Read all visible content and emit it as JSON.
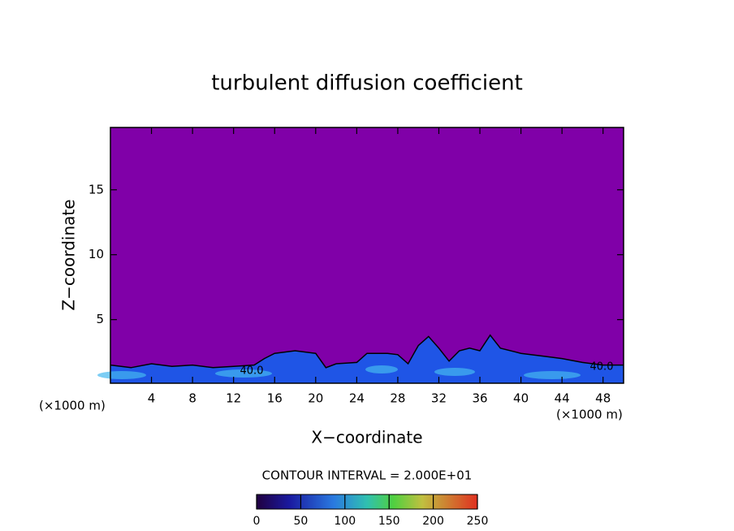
{
  "chart_data": {
    "type": "contour",
    "title": "turbulent diffusion coefficient",
    "xlabel": "X−coordinate",
    "ylabel": "Z−coordinate",
    "x_unit": "(×1000 m)",
    "y_unit": "(×1000 m)",
    "xlim": [
      0,
      50
    ],
    "ylim": [
      0.1,
      19.8
    ],
    "xticks": [
      4,
      8,
      12,
      16,
      20,
      24,
      28,
      32,
      36,
      40,
      44,
      48
    ],
    "yticks": [
      5,
      10,
      15
    ],
    "background_color": "#8000a8",
    "field_color": "#1f55e6",
    "x": [
      0,
      2,
      4,
      6,
      8,
      10,
      12,
      14,
      15,
      16,
      18,
      20,
      21,
      22,
      24,
      25,
      27,
      28,
      29,
      30,
      31,
      32,
      33,
      34,
      35,
      36,
      37,
      38,
      40,
      42,
      44,
      46,
      48,
      50
    ],
    "values": [
      1.5,
      1.3,
      1.6,
      1.4,
      1.5,
      1.3,
      1.4,
      1.5,
      2.0,
      2.4,
      2.6,
      2.4,
      1.3,
      1.6,
      1.7,
      2.4,
      2.4,
      2.3,
      1.6,
      3.0,
      3.7,
      2.8,
      1.8,
      2.6,
      2.8,
      2.6,
      3.8,
      2.8,
      2.4,
      2.2,
      2.0,
      1.7,
      1.5,
      1.5
    ],
    "contour_labels": [
      {
        "value": 40,
        "label": "40.0"
      },
      {
        "value": 40,
        "label": "40.0"
      }
    ],
    "contour_interval": "CONTOUR INTERVAL = 2.000E+01",
    "colorbar": {
      "lim": [
        0,
        250
      ],
      "ticks": [
        0,
        50,
        100,
        150,
        200,
        250
      ]
    }
  }
}
